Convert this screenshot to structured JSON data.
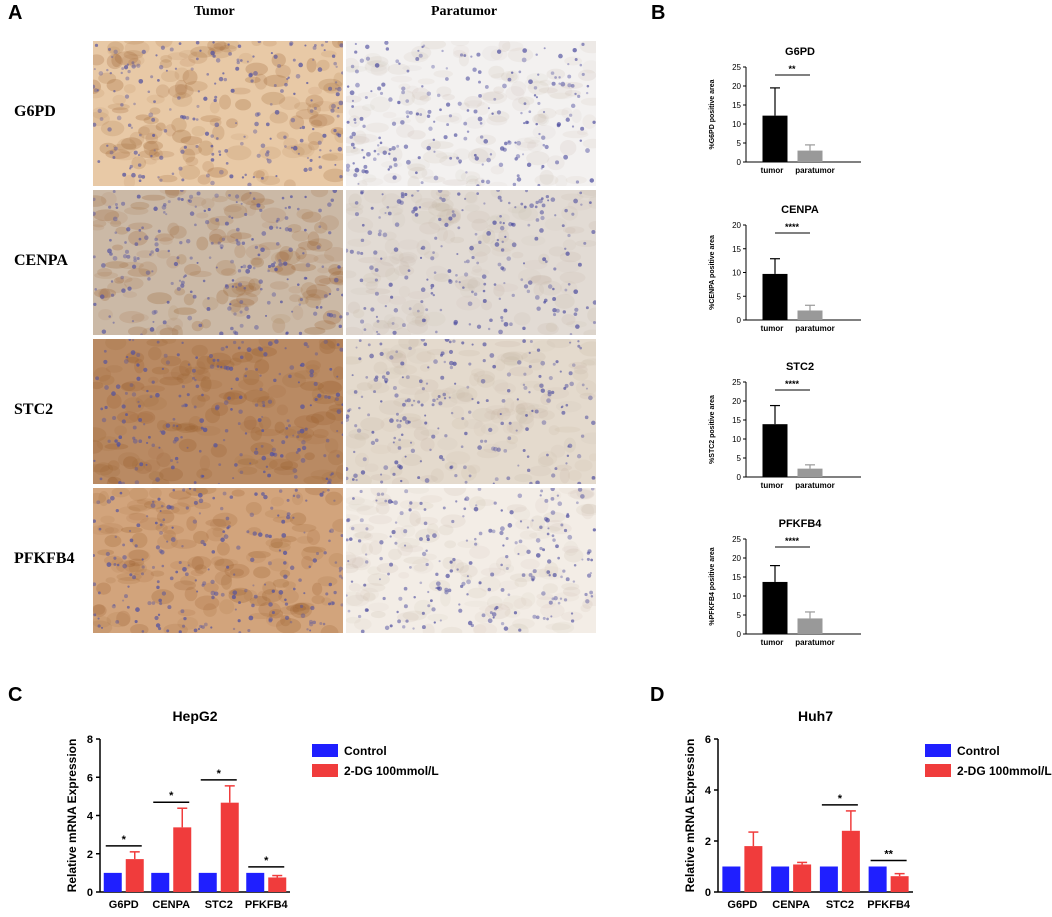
{
  "panels": {
    "A": "A",
    "B": "B",
    "C": "C",
    "D": "D"
  },
  "ihc": {
    "columns": [
      "Tumor",
      "Paratumor"
    ],
    "rows": [
      "G6PD",
      "CENPA",
      "STC2",
      "PFKFB4"
    ]
  },
  "chart_data": [
    {
      "type": "bar",
      "panel": "B",
      "title": "G6PD",
      "ylabel": "%G6PD positive area",
      "categories": [
        "tumor",
        "paratumor"
      ],
      "values": [
        12.2,
        3.0
      ],
      "errors": [
        7.3,
        1.5
      ],
      "ylim": [
        0,
        25
      ],
      "yticks": [
        0,
        5,
        10,
        15,
        20,
        25
      ],
      "significance": "**",
      "colors": [
        "#000000",
        "#999999"
      ]
    },
    {
      "type": "bar",
      "panel": "B",
      "title": "CENPA",
      "ylabel": "%CENPA positive area",
      "categories": [
        "tumor",
        "paratumor"
      ],
      "values": [
        9.7,
        2.0
      ],
      "errors": [
        3.2,
        1.1
      ],
      "ylim": [
        0,
        20
      ],
      "yticks": [
        0,
        5,
        10,
        15,
        20
      ],
      "significance": "****",
      "colors": [
        "#000000",
        "#999999"
      ]
    },
    {
      "type": "bar",
      "panel": "B",
      "title": "STC2",
      "ylabel": "%STC2 positive area",
      "categories": [
        "tumor",
        "paratumor"
      ],
      "values": [
        13.9,
        2.2
      ],
      "errors": [
        4.9,
        1.0
      ],
      "ylim": [
        0,
        25
      ],
      "yticks": [
        0,
        5,
        10,
        15,
        20,
        25
      ],
      "significance": "****",
      "colors": [
        "#000000",
        "#999999"
      ]
    },
    {
      "type": "bar",
      "panel": "B",
      "title": "PFKFB4",
      "ylabel": "%PFKFB4 positive area",
      "categories": [
        "tumor",
        "paratumor"
      ],
      "values": [
        13.7,
        4.1
      ],
      "errors": [
        4.3,
        1.7
      ],
      "ylim": [
        0,
        25
      ],
      "yticks": [
        0,
        5,
        10,
        15,
        20,
        25
      ],
      "significance": "****",
      "colors": [
        "#000000",
        "#999999"
      ]
    },
    {
      "type": "bar",
      "panel": "C",
      "title": "HepG2",
      "ylabel": "Relative mRNA Expression",
      "categories": [
        "G6PD",
        "CENPA",
        "STC2",
        "PFKFB4"
      ],
      "series": [
        {
          "name": "Control",
          "values": [
            1,
            1,
            1,
            1
          ],
          "errors": [
            0,
            0,
            0,
            0
          ],
          "color": "#1f1fff"
        },
        {
          "name": "2-DG 100mmol/L",
          "values": [
            1.72,
            3.38,
            4.67,
            0.76
          ],
          "errors": [
            0.38,
            1.0,
            0.88,
            0.1
          ],
          "color": "#f03c3c"
        }
      ],
      "significance": [
        "*",
        "*",
        "*",
        "*"
      ],
      "ylim": [
        0,
        8
      ],
      "yticks": [
        0,
        2,
        4,
        6,
        8
      ],
      "legend": "right"
    },
    {
      "type": "bar",
      "panel": "D",
      "title": "Huh7",
      "ylabel": "Relative mRNA Expression",
      "categories": [
        "G6PD",
        "CENPA",
        "STC2",
        "PFKFB4"
      ],
      "series": [
        {
          "name": "Control",
          "values": [
            1,
            1,
            1,
            1
          ],
          "errors": [
            0,
            0,
            0,
            0
          ],
          "color": "#1f1fff"
        },
        {
          "name": "2-DG 100mmol/L",
          "values": [
            1.8,
            1.08,
            2.4,
            0.62
          ],
          "errors": [
            0.55,
            0.08,
            0.78,
            0.1
          ],
          "color": "#f03c3c"
        }
      ],
      "significance": [
        "",
        "",
        "*",
        "**"
      ],
      "ylim": [
        0,
        6
      ],
      "yticks": [
        0,
        2,
        4,
        6
      ],
      "legend": "right"
    }
  ]
}
